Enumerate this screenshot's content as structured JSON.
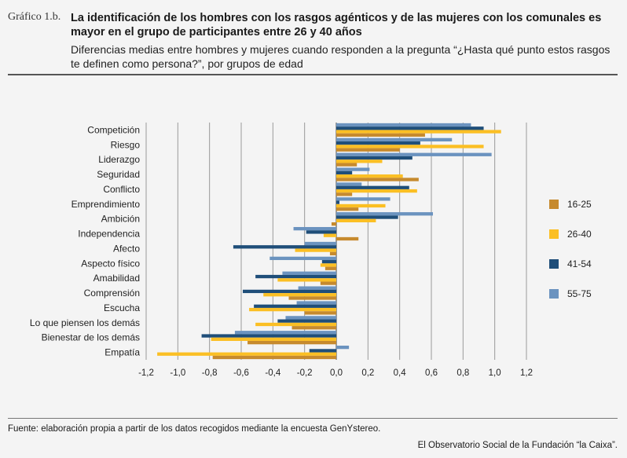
{
  "header": {
    "label": "Gráfico 1.b.",
    "title": "La identificación de los hombres con los rasgos agénticos y de las mujeres con los comunales es mayor en el grupo de participantes entre 26 y 40 años",
    "subtitle": "Diferencias medias entre hombres y mujeres cuando responden a la pregunta “¿Hasta qué punto estos rasgos te definen como persona?”, por grupos de edad"
  },
  "footer": {
    "source": "Fuente: elaboración propia a partir de los datos recogidos mediante la encuesta GenYstereo.",
    "credit": "El Observatorio Social de la Fundación “la Caixa”."
  },
  "chart_data": {
    "type": "bar",
    "orientation": "horizontal",
    "title": "",
    "xlabel": "",
    "ylabel": "",
    "xlim": [
      -1.2,
      1.2
    ],
    "ticks": [
      -1.2,
      -1.0,
      -0.8,
      -0.6,
      -0.4,
      -0.2,
      0.0,
      0.2,
      0.4,
      0.6,
      0.8,
      1.0,
      1.2
    ],
    "tick_labels": [
      "-1,2",
      "-1,0",
      "-0,8",
      "-0,6",
      "-0,4",
      "-0,2",
      "0,0",
      "0,2",
      "0,4",
      "0,6",
      "0,8",
      "1,0",
      "1,2"
    ],
    "grid": true,
    "legend_position": "right",
    "categories": [
      "Competición",
      "Riesgo",
      "Liderazgo",
      "Seguridad",
      "Conflicto",
      "Emprendimiento",
      "Ambición",
      "Independencia",
      "Afecto",
      "Aspecto físico",
      "Amabilidad",
      "Comprensión",
      "Escucha",
      "Lo que piensen los demás",
      "Bienestar de los demás",
      "Empatía"
    ],
    "series": [
      {
        "name": "55-75",
        "color": "#6b93bf",
        "values": [
          0.85,
          0.73,
          0.98,
          0.21,
          0.16,
          0.34,
          0.61,
          -0.27,
          -0.2,
          -0.42,
          -0.34,
          -0.24,
          -0.25,
          -0.32,
          -0.64,
          0.08
        ]
      },
      {
        "name": "41-54",
        "color": "#1f4e79",
        "values": [
          0.93,
          0.53,
          0.48,
          0.1,
          0.46,
          0.02,
          0.39,
          -0.19,
          -0.65,
          -0.09,
          -0.51,
          -0.59,
          -0.52,
          -0.37,
          -0.85,
          -0.17
        ]
      },
      {
        "name": "26-40",
        "color": "#fbbf24",
        "values": [
          1.04,
          0.93,
          0.29,
          0.42,
          0.51,
          0.31,
          0.25,
          -0.08,
          -0.26,
          -0.1,
          -0.37,
          -0.46,
          -0.55,
          -0.51,
          -0.79,
          -1.13
        ]
      },
      {
        "name": "16-25",
        "color": "#c68a2e",
        "values": [
          0.56,
          0.4,
          0.13,
          0.52,
          0.1,
          0.14,
          -0.03,
          0.14,
          -0.04,
          -0.07,
          -0.1,
          -0.3,
          -0.2,
          -0.28,
          -0.56,
          -0.78
        ]
      }
    ],
    "legend_order": [
      "16-25",
      "26-40",
      "41-54",
      "55-75"
    ]
  }
}
